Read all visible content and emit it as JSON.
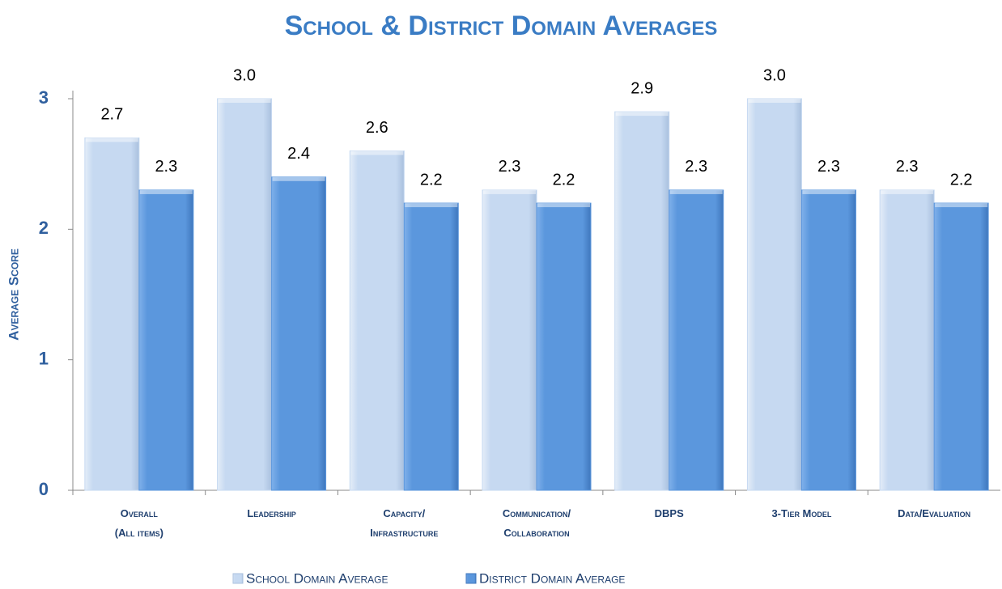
{
  "chart_data": {
    "type": "bar",
    "title": "School & District Domain Averages",
    "y_label": "Average Score",
    "categories": [
      "Overall\n(All items)",
      "Leadership",
      "Capacity/\nInfrastructure",
      "Communication/\nCollaboration",
      "DBPS",
      "3-Tier Model",
      "Data/Evaluation"
    ],
    "series": [
      {
        "name": "School Domain Average",
        "color": "#c6d9f1",
        "values": [
          2.7,
          3,
          2.6,
          2.3,
          2.9,
          3,
          2.3
        ],
        "value_labels": [
          "2.7",
          "3.0",
          "2.6",
          "2.3",
          "2.9",
          "3.0",
          "2.3"
        ]
      },
      {
        "name": "District Domain Average",
        "color": "#5b97dd",
        "values": [
          2.3,
          2.4,
          2.2,
          2.2,
          2.3,
          2.3,
          2.2
        ],
        "value_labels": [
          "2.3",
          "2.4",
          "2.2",
          "2.2",
          "2.3",
          "2.3",
          "2.2"
        ]
      }
    ],
    "ylim": [
      0,
      3
    ],
    "yticks": [
      0,
      1,
      2,
      3
    ],
    "grid": false,
    "legend": "bottom"
  }
}
